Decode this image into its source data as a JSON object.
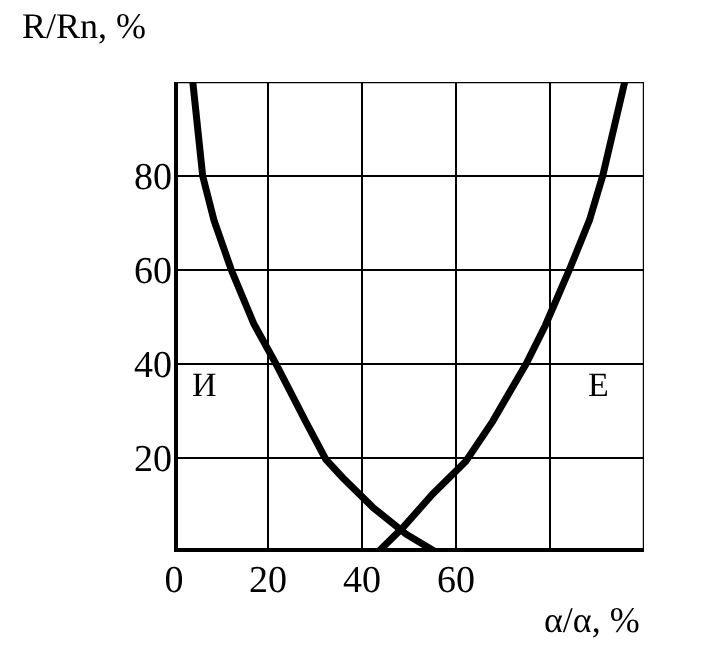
{
  "chart_data": {
    "type": "line",
    "xlabel": "α/α, %",
    "ylabel": "R/Rn, %",
    "xlim": [
      0,
      100
    ],
    "ylim": [
      0,
      100
    ],
    "xticks": [
      0,
      20,
      40,
      60,
      {
        "value": 80,
        "label": null
      },
      {
        "value": 100,
        "label": null
      }
    ],
    "yticks": [
      {
        "value": 0,
        "label": null
      },
      20,
      40,
      60,
      80,
      {
        "value": 100,
        "label": null
      }
    ],
    "grid": true,
    "legend": false,
    "marker": "none",
    "line_style": "solid",
    "series": [
      {
        "name": "И",
        "color": "#000000",
        "x": [
          4,
          6.1,
          8.5,
          12.2,
          17,
          21.7,
          28,
          32.3,
          35.9,
          42.3,
          49.4,
          55.7
        ],
        "values": [
          100,
          80,
          70.6,
          60,
          48.5,
          40,
          27.8,
          19.7,
          15.8,
          9.5,
          3.8,
          0
        ]
      },
      {
        "name": "Е",
        "color": "#000000",
        "x": [
          43.4,
          48.7,
          55,
          62.1,
          67.8,
          74.9,
          79,
          84.1,
          88.4,
          91.2,
          95.9
        ],
        "values": [
          0,
          5.2,
          12.3,
          19.3,
          27.8,
          40,
          48.2,
          60,
          70.6,
          80,
          100
        ]
      }
    ]
  }
}
